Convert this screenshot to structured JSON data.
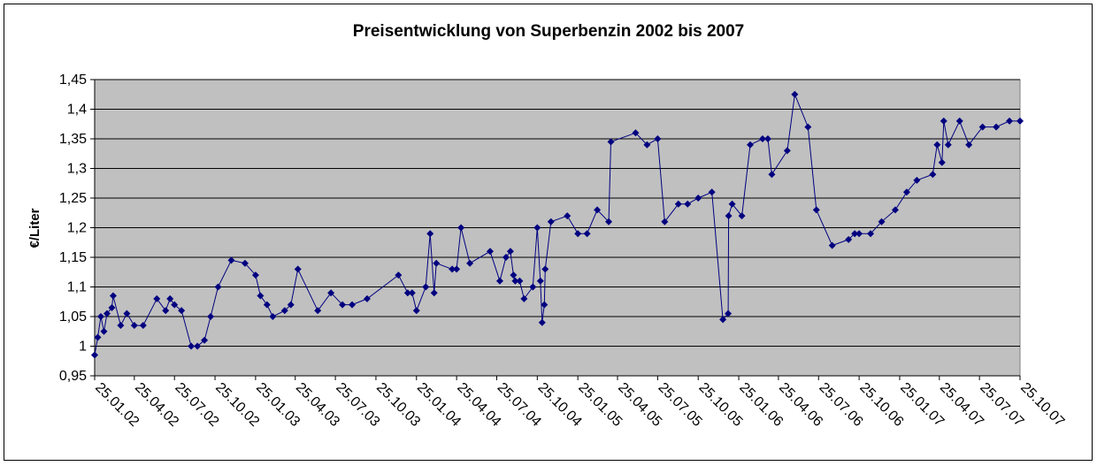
{
  "chart_data": {
    "type": "line",
    "title": "Preisentwicklung von Superbenzin 2002 bis 2007",
    "xlabel": "",
    "ylabel": "€/Liter",
    "ylim": [
      0.95,
      1.45
    ],
    "yticks": [
      "0,95",
      "1",
      "1,05",
      "1,1",
      "1,15",
      "1,2",
      "1,25",
      "1,3",
      "1,35",
      "1,4",
      "1,45"
    ],
    "xlim": [
      "2002-01-25",
      "2007-10-25"
    ],
    "xticks": [
      "25.01.02",
      "25.04.02",
      "25.07.02",
      "25.10.02",
      "25.01.03",
      "25.04.03",
      "25.07.03",
      "25.10.03",
      "25.01.04",
      "25.04.04",
      "25.07.04",
      "25.10.04",
      "25.01.05",
      "25.04.05",
      "25.07.05",
      "25.10.05",
      "25.01.06",
      "25.04.06",
      "25.07.06",
      "25.10.06",
      "25.01.07",
      "25.04.07",
      "25.07.07",
      "25.10.07"
    ],
    "grid": true,
    "legend": "none",
    "colors": {
      "plot_bg": "#c0c0c0",
      "line": "#000080",
      "grid": "#000000"
    },
    "series": [
      {
        "name": "",
        "x": [
          "2002-01-25",
          "2002-02-01",
          "2002-02-08",
          "2002-02-15",
          "2002-02-22",
          "2002-03-05",
          "2002-03-08",
          "2002-03-25",
          "2002-04-08",
          "2002-04-25",
          "2002-05-15",
          "2002-06-15",
          "2002-07-05",
          "2002-07-15",
          "2002-07-25",
          "2002-08-10",
          "2002-09-01",
          "2002-09-15",
          "2002-10-01",
          "2002-10-15",
          "2002-11-01",
          "2002-12-01",
          "2003-01-01",
          "2003-01-25",
          "2003-02-05",
          "2003-02-20",
          "2003-03-05",
          "2003-04-01",
          "2003-04-15",
          "2003-05-01",
          "2003-06-15",
          "2003-07-15",
          "2003-08-10",
          "2003-09-01",
          "2003-10-05",
          "2003-12-15",
          "2004-01-05",
          "2004-01-15",
          "2004-01-25",
          "2004-02-15",
          "2004-02-25",
          "2004-03-05",
          "2004-03-10",
          "2004-04-15",
          "2004-04-25",
          "2004-05-05",
          "2004-05-25",
          "2004-07-10",
          "2004-08-01",
          "2004-08-15",
          "2004-08-25",
          "2004-09-01",
          "2004-09-05",
          "2004-09-15",
          "2004-09-25",
          "2004-10-15",
          "2004-10-25",
          "2004-11-01",
          "2004-11-05",
          "2004-11-10",
          "2004-11-12",
          "2004-11-25",
          "2005-01-01",
          "2005-01-25",
          "2005-02-15",
          "2005-03-10",
          "2005-04-05",
          "2005-04-10",
          "2005-06-05",
          "2005-07-01",
          "2005-07-25",
          "2005-08-10",
          "2005-09-10",
          "2005-10-01",
          "2005-10-25",
          "2005-11-25",
          "2005-12-20",
          "2006-01-01",
          "2006-01-02",
          "2006-01-10",
          "2006-02-01",
          "2006-02-20",
          "2006-03-20",
          "2006-04-01",
          "2006-04-10",
          "2006-05-15",
          "2006-06-01",
          "2006-07-01",
          "2006-07-20",
          "2006-08-25",
          "2006-10-01",
          "2006-10-15",
          "2006-10-25",
          "2006-11-20",
          "2006-12-15",
          "2007-01-15",
          "2007-02-10",
          "2007-03-05",
          "2007-04-10",
          "2007-04-20",
          "2007-05-01",
          "2007-05-05",
          "2007-05-15",
          "2007-06-10",
          "2007-07-01",
          "2007-08-01",
          "2007-09-01",
          "2007-10-01",
          "2007-10-25"
        ],
        "y": [
          0.985,
          1.015,
          1.05,
          1.025,
          1.055,
          1.065,
          1.085,
          1.035,
          1.055,
          1.035,
          1.035,
          1.08,
          1.06,
          1.08,
          1.07,
          1.06,
          1.0,
          1.0,
          1.01,
          1.05,
          1.1,
          1.145,
          1.14,
          1.12,
          1.085,
          1.07,
          1.05,
          1.06,
          1.07,
          1.13,
          1.06,
          1.09,
          1.07,
          1.07,
          1.08,
          1.12,
          1.09,
          1.09,
          1.06,
          1.1,
          1.19,
          1.09,
          1.14,
          1.13,
          1.13,
          1.2,
          1.14,
          1.16,
          1.11,
          1.15,
          1.16,
          1.12,
          1.11,
          1.11,
          1.08,
          1.1,
          1.2,
          1.11,
          1.04,
          1.07,
          1.13,
          1.21,
          1.22,
          1.19,
          1.19,
          1.23,
          1.21,
          1.345,
          1.36,
          1.34,
          1.35,
          1.21,
          1.24,
          1.24,
          1.25,
          1.26,
          1.045,
          1.055,
          1.22,
          1.24,
          1.22,
          1.34,
          1.35,
          1.35,
          1.29,
          1.33,
          1.425,
          1.37,
          1.23,
          1.17,
          1.18,
          1.19,
          1.19,
          1.19,
          1.21,
          1.23,
          1.26,
          1.28,
          1.29,
          1.34,
          1.31,
          1.38,
          1.34,
          1.38,
          1.34,
          1.37,
          1.37,
          1.38,
          1.38
        ]
      }
    ]
  }
}
